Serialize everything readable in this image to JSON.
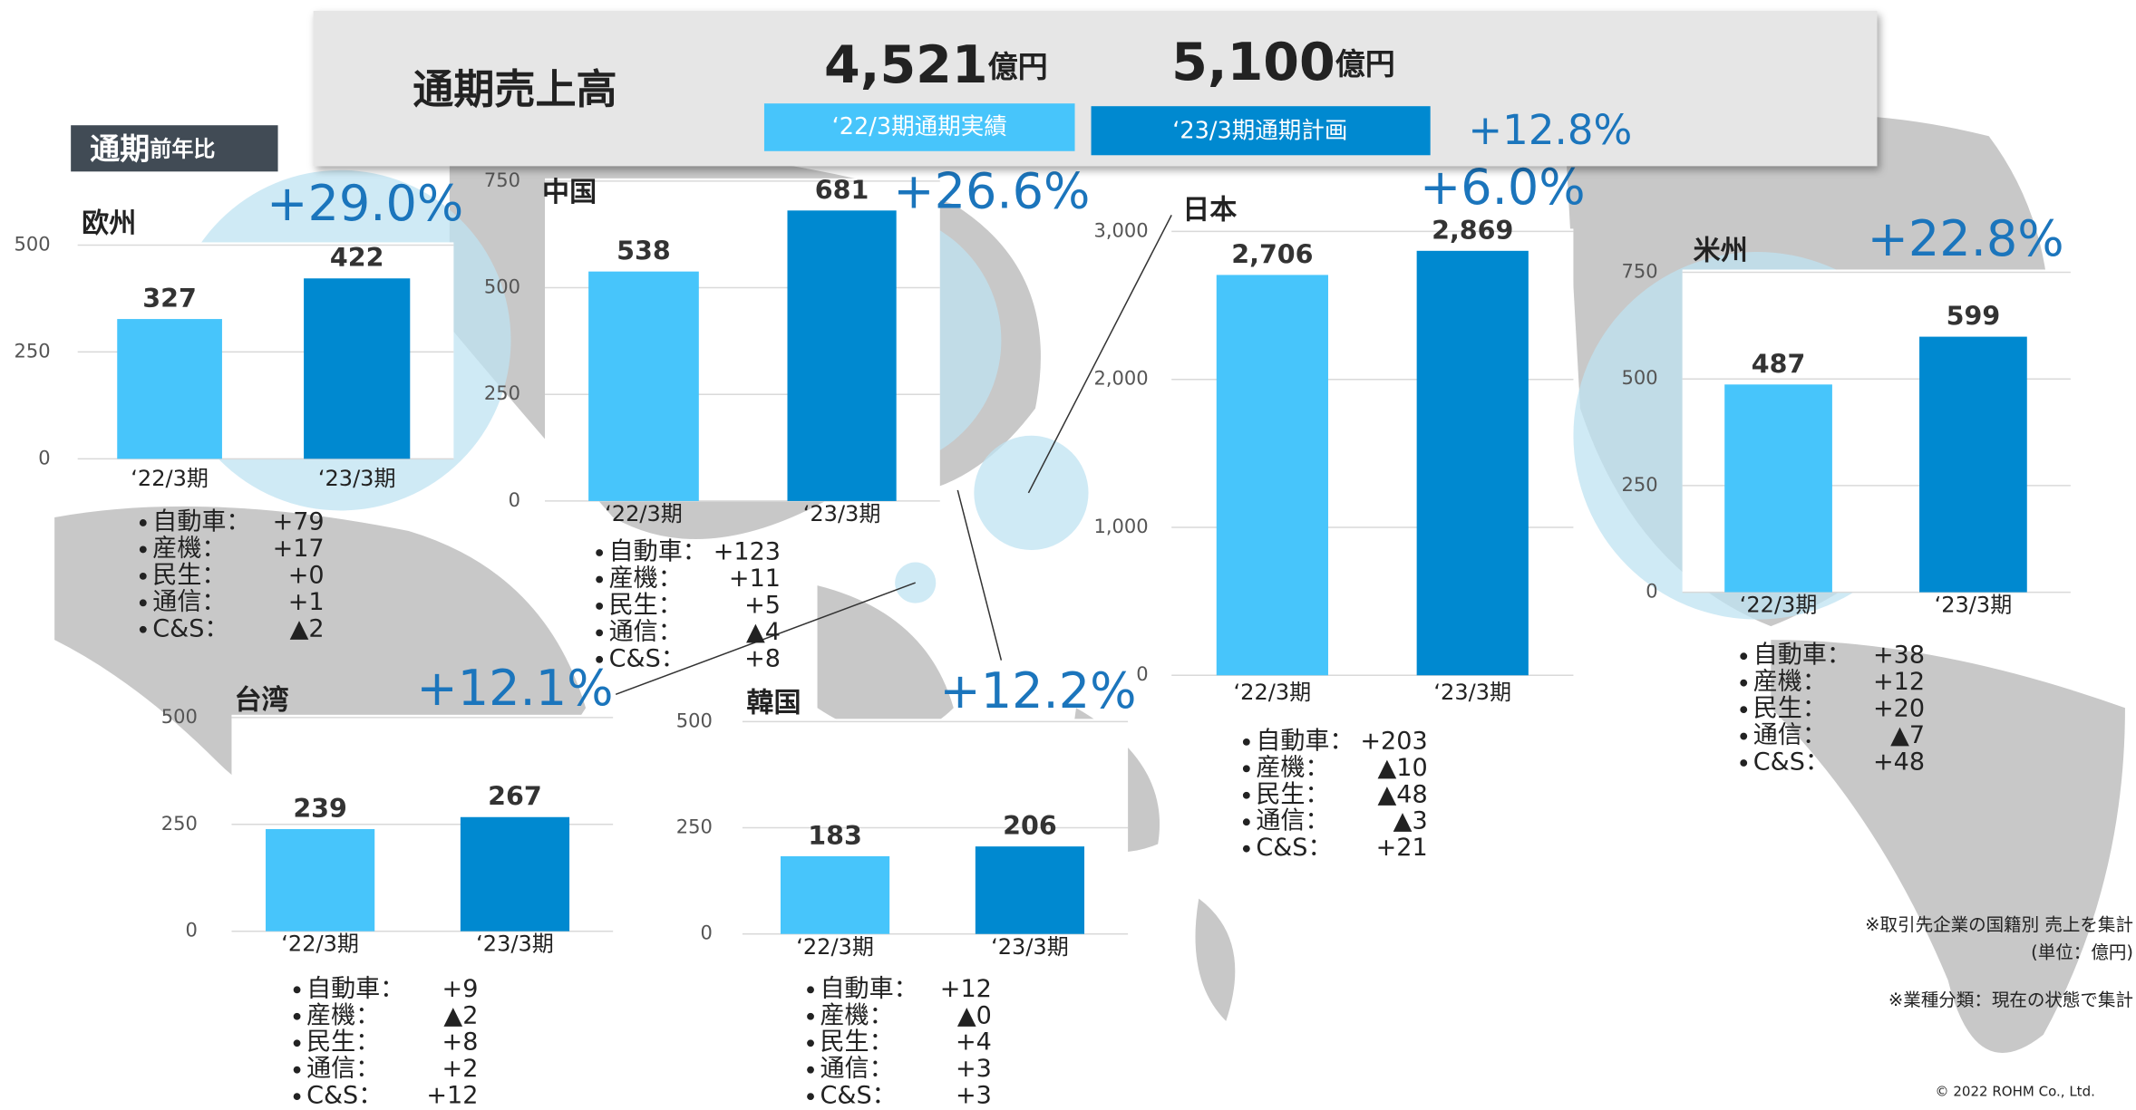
{
  "header": {
    "title": "通期売上高",
    "actual": {
      "value": "4,521",
      "unit": "億円",
      "label": "‘22/3期通期実績"
    },
    "plan": {
      "value": "5,100",
      "unit": "億円",
      "label": "‘23/3期通期計画"
    },
    "growth": "+12.8%"
  },
  "badge": {
    "main": "通期",
    "sub": "前年比"
  },
  "notes": [
    "※取引先企業の国籍別 売上を集計",
    "(単位：億円)",
    "※業種分類：現在の状態で集計"
  ],
  "copyright": "© 2022 ROHM Co., Ltd.",
  "chart_data": [
    {
      "type": "bar",
      "title": "欧州",
      "change": "+29.0%",
      "categories": [
        "‘22/3期",
        "‘23/3期"
      ],
      "values": [
        327,
        422
      ],
      "colors": [
        "#47c5fb",
        "#0089d0"
      ],
      "ylim": [
        0,
        500
      ],
      "yticks": [
        0,
        250,
        500
      ],
      "grid": true,
      "breakdown": [
        {
          "label": "自動車：",
          "value": "+79"
        },
        {
          "label": "産機：",
          "value": "+17"
        },
        {
          "label": "民生：",
          "value": "+0"
        },
        {
          "label": "通信：",
          "value": "+1"
        },
        {
          "label": "C&S：",
          "value": "▲2"
        }
      ]
    },
    {
      "type": "bar",
      "title": "中国",
      "change": "+26.6%",
      "categories": [
        "‘22/3期",
        "‘23/3期"
      ],
      "values": [
        538,
        681
      ],
      "colors": [
        "#47c5fb",
        "#0089d0"
      ],
      "ylim": [
        0,
        750
      ],
      "yticks": [
        0,
        250,
        500,
        750
      ],
      "grid": true,
      "breakdown": [
        {
          "label": "自動車：",
          "value": "+123"
        },
        {
          "label": "産機：",
          "value": "+11"
        },
        {
          "label": "民生：",
          "value": "+5"
        },
        {
          "label": "通信：",
          "value": "▲4"
        },
        {
          "label": "C&S：",
          "value": "+8"
        }
      ]
    },
    {
      "type": "bar",
      "title": "日本",
      "change": "+6.0%",
      "categories": [
        "‘22/3期",
        "‘23/3期"
      ],
      "values": [
        2706,
        2869
      ],
      "value_labels": [
        "2,706",
        "2,869"
      ],
      "colors": [
        "#47c5fb",
        "#0089d0"
      ],
      "ylim": [
        0,
        3000
      ],
      "yticks": [
        0,
        {
          "value": 1000,
          "label": "1,000"
        },
        {
          "value": 2000,
          "label": "2,000"
        },
        {
          "value": 3000,
          "label": "3,000"
        }
      ],
      "grid": true,
      "breakdown": [
        {
          "label": "自動車：",
          "value": "+203"
        },
        {
          "label": "産機：",
          "value": "▲10"
        },
        {
          "label": "民生：",
          "value": "▲48"
        },
        {
          "label": "通信：",
          "value": "▲3"
        },
        {
          "label": "C&S：",
          "value": "+21"
        }
      ]
    },
    {
      "type": "bar",
      "title": "米州",
      "change": "+22.8%",
      "categories": [
        "‘22/3期",
        "‘23/3期"
      ],
      "values": [
        487,
        599
      ],
      "colors": [
        "#47c5fb",
        "#0089d0"
      ],
      "ylim": [
        0,
        750
      ],
      "yticks": [
        0,
        250,
        500,
        750
      ],
      "grid": true,
      "breakdown": [
        {
          "label": "自動車：",
          "value": "+38"
        },
        {
          "label": "産機：",
          "value": "+12"
        },
        {
          "label": "民生：",
          "value": "+20"
        },
        {
          "label": "通信：",
          "value": "▲7"
        },
        {
          "label": "C&S：",
          "value": "+48"
        }
      ]
    },
    {
      "type": "bar",
      "title": "台湾",
      "change": "+12.1%",
      "categories": [
        "‘22/3期",
        "‘23/3期"
      ],
      "values": [
        239,
        267
      ],
      "colors": [
        "#47c5fb",
        "#0089d0"
      ],
      "ylim": [
        0,
        500
      ],
      "yticks": [
        0,
        250,
        500
      ],
      "grid": true,
      "breakdown": [
        {
          "label": "自動車：",
          "value": "+9"
        },
        {
          "label": "産機：",
          "value": "▲2"
        },
        {
          "label": "民生：",
          "value": "+8"
        },
        {
          "label": "通信：",
          "value": "+2"
        },
        {
          "label": "C&S：",
          "value": "+12"
        }
      ]
    },
    {
      "type": "bar",
      "title": "韓国",
      "change": "+12.2%",
      "categories": [
        "‘22/3期",
        "‘23/3期"
      ],
      "values": [
        183,
        206
      ],
      "colors": [
        "#47c5fb",
        "#0089d0"
      ],
      "ylim": [
        0,
        500
      ],
      "yticks": [
        0,
        250,
        500
      ],
      "grid": true,
      "breakdown": [
        {
          "label": "自動車：",
          "value": "+12"
        },
        {
          "label": "産機：",
          "value": "▲0"
        },
        {
          "label": "民生：",
          "value": "+4"
        },
        {
          "label": "通信：",
          "value": "+3"
        },
        {
          "label": "C&S：",
          "value": "+3"
        }
      ]
    }
  ]
}
